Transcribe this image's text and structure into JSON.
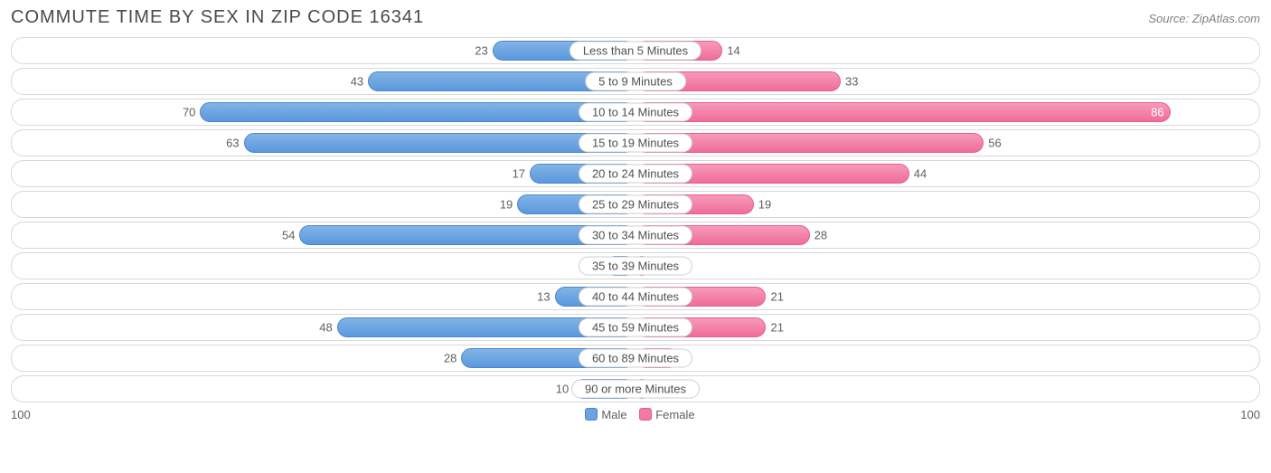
{
  "title": "COMMUTE TIME BY SEX IN ZIP CODE 16341",
  "source": "Source: ZipAtlas.com",
  "chart": {
    "type": "diverging-bar",
    "axis_max": 100,
    "colors": {
      "male": "#6aa3e0",
      "female": "#f17ba4",
      "row_border": "#d8d8d8",
      "text": "#606060",
      "background": "#ffffff"
    },
    "legend": {
      "male_label": "Male",
      "female_label": "Female"
    },
    "axis": {
      "left_label": "100",
      "right_label": "100"
    },
    "rows": [
      {
        "category": "Less than 5 Minutes",
        "male": 23,
        "female": 14
      },
      {
        "category": "5 to 9 Minutes",
        "male": 43,
        "female": 33
      },
      {
        "category": "10 to 14 Minutes",
        "male": 70,
        "female": 86
      },
      {
        "category": "15 to 19 Minutes",
        "male": 63,
        "female": 56
      },
      {
        "category": "20 to 24 Minutes",
        "male": 17,
        "female": 44
      },
      {
        "category": "25 to 29 Minutes",
        "male": 19,
        "female": 19
      },
      {
        "category": "30 to 34 Minutes",
        "male": 54,
        "female": 28
      },
      {
        "category": "35 to 39 Minutes",
        "male": 5,
        "female": 2
      },
      {
        "category": "40 to 44 Minutes",
        "male": 13,
        "female": 21
      },
      {
        "category": "45 to 59 Minutes",
        "male": 48,
        "female": 21
      },
      {
        "category": "60 to 89 Minutes",
        "male": 28,
        "female": 7
      },
      {
        "category": "90 or more Minutes",
        "male": 10,
        "female": 2
      }
    ]
  }
}
